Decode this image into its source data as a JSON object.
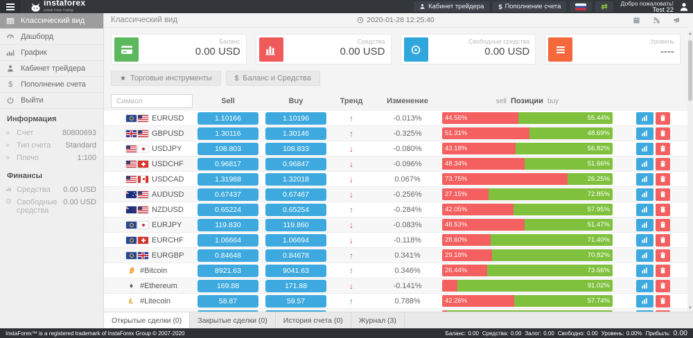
{
  "header": {
    "logo_text": "instaforex",
    "logo_tagline": "Instant Forex Trading",
    "cabinet_button": "Кабинет трейдера",
    "deposit_button": "Пополнение счета",
    "welcome": "Добро пожаловать!",
    "username": "Test 22"
  },
  "sidebar": {
    "items": [
      {
        "id": "classic-view",
        "icon": "table",
        "label": "Классический вид",
        "active": true
      },
      {
        "id": "dashboard",
        "icon": "dashboard",
        "label": "Дашборд",
        "active": false
      },
      {
        "id": "chart",
        "icon": "chart",
        "label": "График",
        "active": false
      },
      {
        "id": "trader-cabinet",
        "icon": "user",
        "label": "Кабинет трейдера",
        "active": false
      },
      {
        "id": "deposit",
        "icon": "dollar",
        "label": "Пополнение счета",
        "active": false
      },
      {
        "id": "logout",
        "icon": "power",
        "label": "Выйти",
        "active": false
      }
    ],
    "info_heading": "Информация",
    "info_rows": [
      {
        "icon": "chevrons",
        "label": "Счет",
        "value": "80800693"
      },
      {
        "icon": "chevrons",
        "label": "Тип счета",
        "value": "Standard"
      },
      {
        "icon": "chevrons",
        "label": "Плечо",
        "value": "1:100"
      }
    ],
    "fin_heading": "Финансы",
    "fin_rows": [
      {
        "icon": "chart-mini",
        "label": "Средства",
        "value": "0.00 USD"
      },
      {
        "icon": "coin-mini",
        "label": "Свободные средства",
        "value": "0.00 USD"
      }
    ]
  },
  "content": {
    "title": "Классический вид",
    "datetime": "2020-01-28 12:25:40"
  },
  "cards": [
    {
      "icon": "credit-card",
      "color": "#5cb85c",
      "label": "Баланс",
      "value": "0.00 USD"
    },
    {
      "icon": "bar-chart",
      "color": "#ef5b5b",
      "label": "Средства",
      "value": "0.00 USD"
    },
    {
      "icon": "coin",
      "color": "#2fa7dc",
      "label": "Свободные средства",
      "value": "0.00 USD"
    },
    {
      "icon": "menu",
      "color": "#f4683c",
      "label": "Уровень",
      "value": "----"
    }
  ],
  "toolbar": [
    {
      "icon": "star",
      "label": "Торговые инструменты"
    },
    {
      "icon": "dollar",
      "label": "Баланс и Средства"
    }
  ],
  "table": {
    "search_placeholder": "Символ",
    "columns": {
      "sell": "Sell",
      "buy": "Buy",
      "trend": "Тренд",
      "change": "Изменение"
    },
    "positions_header": {
      "left": "sell",
      "mid": "Позиции",
      "right": "buy"
    },
    "rows": [
      {
        "symbol": "EURUSD",
        "icons": [
          "eu",
          "us"
        ],
        "sell": "1.10166",
        "buy": "1.10196",
        "trend": "up",
        "change": "-0.013%",
        "sell_pct": 44.56,
        "buy_pct": 55.44,
        "sell_label": "44.56%",
        "buy_label": "55.44%"
      },
      {
        "symbol": "GBPUSD",
        "icons": [
          "gb",
          "us"
        ],
        "sell": "1.30116",
        "buy": "1.30146",
        "trend": "up",
        "change": "-0.325%",
        "sell_pct": 51.31,
        "buy_pct": 48.69,
        "sell_label": "51.31%",
        "buy_label": "48.69%"
      },
      {
        "symbol": "USDJPY",
        "icons": [
          "us",
          "jp"
        ],
        "sell": "108.803",
        "buy": "108.833",
        "trend": "down",
        "change": "-0.080%",
        "sell_pct": 43.18,
        "buy_pct": 56.82,
        "sell_label": "43.18%",
        "buy_label": "56.82%"
      },
      {
        "symbol": "USDCHF",
        "icons": [
          "us",
          "ch"
        ],
        "sell": "0.96817",
        "buy": "0.96847",
        "trend": "down",
        "change": "-0.096%",
        "sell_pct": 48.34,
        "buy_pct": 51.66,
        "sell_label": "48.34%",
        "buy_label": "51.66%"
      },
      {
        "symbol": "USDCAD",
        "icons": [
          "us",
          "ca"
        ],
        "sell": "1.31988",
        "buy": "1.32018",
        "trend": "down",
        "change": "0.067%",
        "sell_pct": 73.75,
        "buy_pct": 26.25,
        "sell_label": "73.75%",
        "buy_label": "26.25%"
      },
      {
        "symbol": "AUDUSD",
        "icons": [
          "au",
          "us"
        ],
        "sell": "0.67437",
        "buy": "0.67467",
        "trend": "down",
        "change": "-0.256%",
        "sell_pct": 27.15,
        "buy_pct": 72.85,
        "sell_label": "27.15%",
        "buy_label": "72.85%"
      },
      {
        "symbol": "NZDUSD",
        "icons": [
          "nz",
          "us"
        ],
        "sell": "0.65224",
        "buy": "0.65254",
        "trend": "up",
        "change": "-0.284%",
        "sell_pct": 42.05,
        "buy_pct": 57.95,
        "sell_label": "42.05%",
        "buy_label": "57.95%"
      },
      {
        "symbol": "EURJPY",
        "icons": [
          "eu",
          "jp"
        ],
        "sell": "119.830",
        "buy": "119.860",
        "trend": "down",
        "change": "-0.083%",
        "sell_pct": 48.53,
        "buy_pct": 51.47,
        "sell_label": "48.53%",
        "buy_label": "51.47%"
      },
      {
        "symbol": "EURCHF",
        "icons": [
          "eu",
          "ch"
        ],
        "sell": "1.06664",
        "buy": "1.06694",
        "trend": "down",
        "change": "-0.118%",
        "sell_pct": 28.6,
        "buy_pct": 71.4,
        "sell_label": "28.60%",
        "buy_label": "71.40%"
      },
      {
        "symbol": "EURGBP",
        "icons": [
          "eu",
          "gb"
        ],
        "sell": "0.84648",
        "buy": "0.84678",
        "trend": "up",
        "change": "0.341%",
        "sell_pct": 29.18,
        "buy_pct": 70.82,
        "sell_label": "29.18%",
        "buy_label": "70.82%"
      },
      {
        "symbol": "#Bitcoin",
        "icons": [
          "btc"
        ],
        "sell": "8921.63",
        "buy": "9041.63",
        "trend": "up",
        "change": "0.346%",
        "sell_pct": 26.44,
        "buy_pct": 73.56,
        "sell_label": "26.44%",
        "buy_label": "73.56%"
      },
      {
        "symbol": "#Ethereum",
        "icons": [
          "eth"
        ],
        "sell": "169.88",
        "buy": "171.88",
        "trend": "down",
        "change": "-0.141%",
        "sell_pct": 8.98,
        "buy_pct": 91.02,
        "sell_label": "",
        "buy_label": "91.02%"
      },
      {
        "symbol": "#Litecoin",
        "icons": [
          "ltc"
        ],
        "sell": "58.87",
        "buy": "59.57",
        "trend": "up",
        "change": "0.788%",
        "sell_pct": 42.26,
        "buy_pct": 57.74,
        "sell_label": "42.26%",
        "buy_label": "57.74%"
      },
      {
        "symbol": "",
        "icons": [
          "dot"
        ],
        "sell": "",
        "buy": "",
        "trend": "",
        "change": "",
        "sell_pct": 3,
        "buy_pct": 97,
        "sell_label": "",
        "buy_label": ""
      }
    ]
  },
  "crypto_glyphs": {
    "btc": "฿",
    "eth": "♦",
    "ltc": "Ł",
    "dot": "•"
  },
  "trend_glyphs": {
    "up": "↑",
    "down": "↓"
  },
  "tabs": [
    {
      "label": "Открытые сделки (0)",
      "active": true
    },
    {
      "label": "Закрытые сделки (0)",
      "active": false
    },
    {
      "label": "История счета (0)",
      "active": false
    },
    {
      "label": "Журнал (3)",
      "active": false
    }
  ],
  "footer": {
    "left": "InstaForex™ is a registered trademark of InstaForex Group © 2007-2020",
    "stats": [
      {
        "label": "Баланс:",
        "value": "0.00"
      },
      {
        "label": "Средства:",
        "value": "0.00"
      },
      {
        "label": "Залог:",
        "value": "0.00"
      },
      {
        "label": "Свободно:",
        "value": "0.00"
      },
      {
        "label": "Уровень:",
        "value": "0.00%"
      },
      {
        "label": "Прибыль:",
        "value": "0.00"
      }
    ]
  }
}
